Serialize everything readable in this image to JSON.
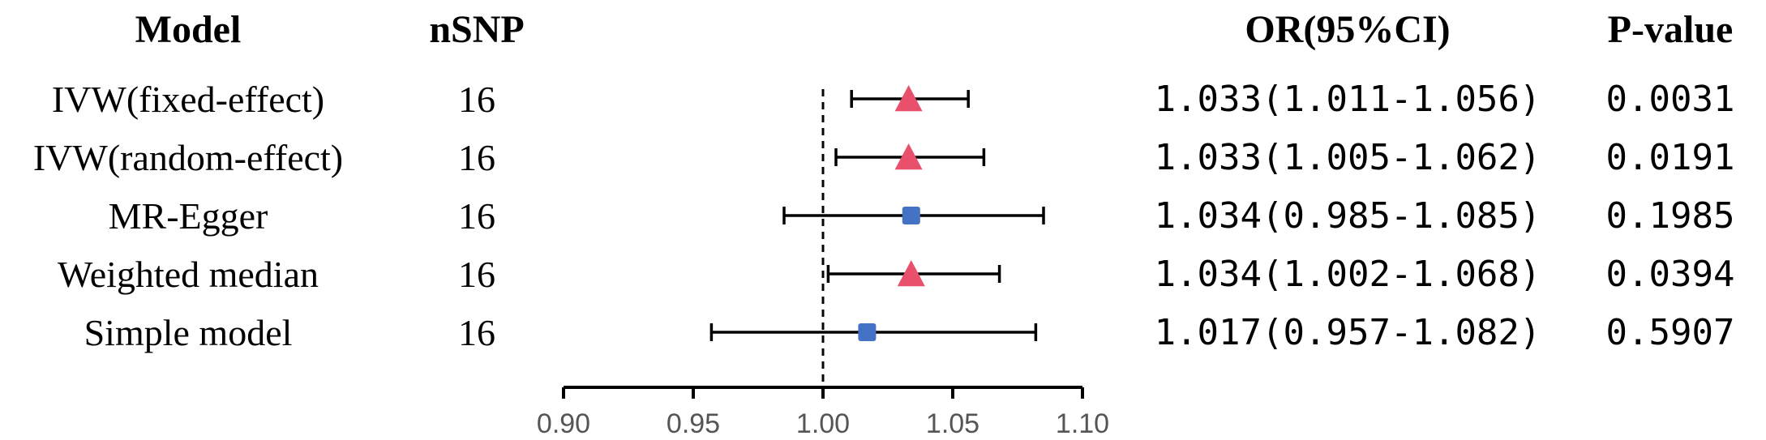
{
  "headers": {
    "model": "Model",
    "nsnp": "nSNP",
    "or": "OR(95%CI)",
    "pvalue": "P-value"
  },
  "chart_data": {
    "type": "forest",
    "reference_line": 1.0,
    "xlim": [
      0.9,
      1.1
    ],
    "xticks": [
      "0.90",
      "0.95",
      "1.00",
      "1.05",
      "1.10"
    ],
    "rows": [
      {
        "model": "IVW(fixed-effect)",
        "nsnp": "16",
        "or": 1.033,
        "lo": 1.011,
        "hi": 1.056,
        "or_text": "1.033(1.011-1.056)",
        "p": "0.0031",
        "marker": "triangle",
        "color": "#e8506b"
      },
      {
        "model": "IVW(random-effect)",
        "nsnp": "16",
        "or": 1.033,
        "lo": 1.005,
        "hi": 1.062,
        "or_text": "1.033(1.005-1.062)",
        "p": "0.0191",
        "marker": "triangle",
        "color": "#e8506b"
      },
      {
        "model": "MR-Egger",
        "nsnp": "16",
        "or": 1.034,
        "lo": 0.985,
        "hi": 1.085,
        "or_text": "1.034(0.985-1.085)",
        "p": "0.1985",
        "marker": "square",
        "color": "#4472c4"
      },
      {
        "model": "Weighted median",
        "nsnp": "16",
        "or": 1.034,
        "lo": 1.002,
        "hi": 1.068,
        "or_text": "1.034(1.002-1.068)",
        "p": "0.0394",
        "marker": "triangle",
        "color": "#e8506b"
      },
      {
        "model": "Simple model",
        "nsnp": "16",
        "or": 1.017,
        "lo": 0.957,
        "hi": 1.082,
        "or_text": "1.017(0.957-1.082)",
        "p": "0.5907",
        "marker": "square",
        "color": "#4472c4"
      }
    ]
  }
}
